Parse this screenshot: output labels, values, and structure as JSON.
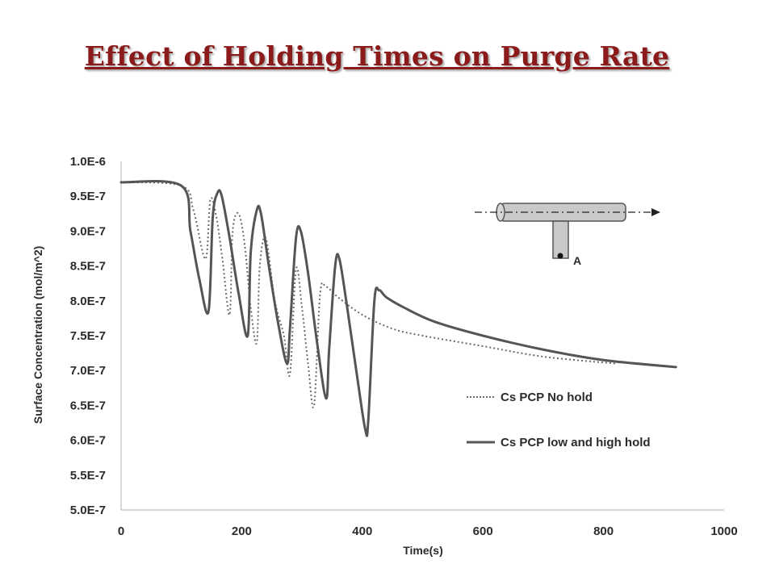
{
  "slide": {
    "title": "Effect of Holding Times on Purge Rate"
  },
  "chart_data": {
    "type": "line",
    "xlabel": "Time(s)",
    "ylabel": "Surface Concentration (mol/m^2)",
    "xlim": [
      0,
      1000
    ],
    "ylim": [
      5e-07,
      1e-06
    ],
    "x_ticks": [
      0,
      200,
      400,
      600,
      800,
      1000
    ],
    "x_tick_labels": [
      "0",
      "200",
      "400",
      "600",
      "800",
      "1000"
    ],
    "y_ticks": [
      5e-07,
      5.5e-07,
      6e-07,
      6.5e-07,
      7e-07,
      7.5e-07,
      8e-07,
      8.5e-07,
      9e-07,
      9.5e-07,
      1e-06
    ],
    "y_tick_labels": [
      "5.0E-7",
      "5.5E-7",
      "6.0E-7",
      "6.5E-7",
      "7.0E-7",
      "7.5E-7",
      "8.0E-7",
      "8.5E-7",
      "9.0E-7",
      "9.5E-7",
      "1.0E-6"
    ],
    "grid": false,
    "legend_position": "bottom-right",
    "series": [
      {
        "name": "Cs PCP No hold",
        "style": "dotted",
        "color": "#6b6b6b",
        "x": [
          0,
          100,
          120,
          140,
          148,
          158,
          168,
          180,
          185,
          195,
          205,
          215,
          225,
          230,
          240,
          255,
          270,
          280,
          290,
          300,
          310,
          320,
          330,
          340,
          360,
          400,
          450,
          500,
          600,
          700,
          820
        ],
        "y": [
          9.7e-07,
          9.65e-07,
          9.3e-07,
          8.6e-07,
          9.45e-07,
          9.2e-07,
          8.6e-07,
          7.8e-07,
          9e-07,
          9.25e-07,
          8.8e-07,
          7.9e-07,
          7.4e-07,
          8.5e-07,
          8.9e-07,
          8e-07,
          7.5e-07,
          6.95e-07,
          8.45e-07,
          7.9e-07,
          7.1e-07,
          6.5e-07,
          8.1e-07,
          8.2e-07,
          8.05e-07,
          7.8e-07,
          7.6e-07,
          7.5e-07,
          7.35e-07,
          7.2e-07,
          7.1e-07
        ]
      },
      {
        "name": "Cs PCP low and high hold",
        "style": "solid",
        "color": "#555555",
        "x": [
          0,
          100,
          115,
          130,
          145,
          152,
          160,
          167,
          180,
          195,
          210,
          215,
          225,
          232,
          245,
          260,
          275,
          280,
          290,
          298,
          310,
          325,
          340,
          345,
          355,
          362,
          375,
          390,
          405,
          410,
          420,
          428,
          440,
          470,
          520,
          600,
          700,
          800,
          920
        ],
        "y": [
          9.7e-07,
          9.65e-07,
          9e-07,
          8.3e-07,
          7.85e-07,
          9.2e-07,
          9.55e-07,
          9.5e-07,
          8.9e-07,
          8.1e-07,
          7.5e-07,
          8.7e-07,
          9.3e-07,
          9.25e-07,
          8.5e-07,
          7.7e-07,
          7.1e-07,
          7.6e-07,
          8.9e-07,
          9e-07,
          8.4e-07,
          7.4e-07,
          6.6e-07,
          7.3e-07,
          8.5e-07,
          8.6e-07,
          7.9e-07,
          7e-07,
          6.15e-07,
          6.3e-07,
          8e-07,
          8.15e-07,
          8.05e-07,
          7.9e-07,
          7.7e-07,
          7.5e-07,
          7.3e-07,
          7.15e-07,
          7.05e-07
        ]
      }
    ],
    "inset": {
      "label": "A",
      "description_visible": false
    }
  }
}
